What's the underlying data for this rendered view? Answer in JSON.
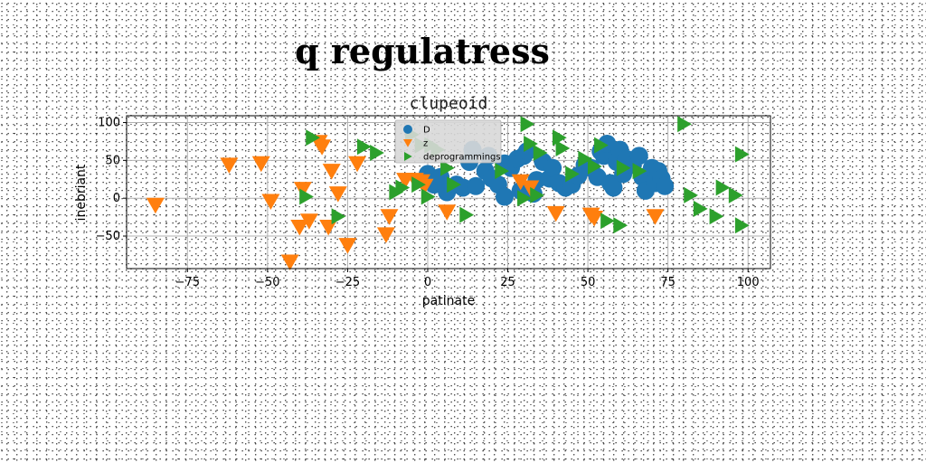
{
  "page": {
    "title": "q regulatress"
  },
  "chart_data": {
    "type": "scatter",
    "title": "clupeoid",
    "xlabel": "patinate",
    "ylabel": "inebriant",
    "xlim": [
      -94,
      107
    ],
    "ylim": [
      -93,
      109
    ],
    "xticks": [
      -75,
      -50,
      -25,
      0,
      25,
      50,
      75,
      100
    ],
    "yticks": [
      -50,
      0,
      50,
      100
    ],
    "xtick_labels": [
      "−75",
      "−50",
      "−25",
      "0",
      "25",
      "50",
      "75",
      "100"
    ],
    "ytick_labels": [
      "−50",
      "0",
      "50",
      "100"
    ],
    "grid": true,
    "legend_position": "top-center",
    "series": [
      {
        "name": "D",
        "marker": "circle",
        "color": "#1f77b4",
        "points": [
          [
            0,
            32
          ],
          [
            2,
            18
          ],
          [
            4,
            28
          ],
          [
            6,
            8
          ],
          [
            9,
            18
          ],
          [
            11,
            14
          ],
          [
            13,
            48
          ],
          [
            14,
            64
          ],
          [
            15,
            16
          ],
          [
            18,
            36
          ],
          [
            19,
            56
          ],
          [
            20,
            26
          ],
          [
            22,
            18
          ],
          [
            24,
            46
          ],
          [
            24,
            2
          ],
          [
            26,
            40
          ],
          [
            28,
            52
          ],
          [
            29,
            10
          ],
          [
            30,
            56
          ],
          [
            31,
            62
          ],
          [
            33,
            6
          ],
          [
            34,
            24
          ],
          [
            36,
            48
          ],
          [
            38,
            26
          ],
          [
            39,
            40
          ],
          [
            41,
            20
          ],
          [
            43,
            14
          ],
          [
            45,
            18
          ],
          [
            47,
            30
          ],
          [
            49,
            44
          ],
          [
            51,
            40
          ],
          [
            53,
            28
          ],
          [
            54,
            62
          ],
          [
            55,
            56
          ],
          [
            56,
            72
          ],
          [
            57,
            20
          ],
          [
            58,
            14
          ],
          [
            59,
            48
          ],
          [
            60,
            64
          ],
          [
            61,
            32
          ],
          [
            62,
            52
          ],
          [
            64,
            44
          ],
          [
            66,
            56
          ],
          [
            67,
            28
          ],
          [
            68,
            10
          ],
          [
            70,
            40
          ],
          [
            71,
            20
          ],
          [
            72,
            36
          ],
          [
            73,
            26
          ],
          [
            74,
            16
          ]
        ]
      },
      {
        "name": "z",
        "marker": "triangle-down",
        "color": "#ff7f0e",
        "points": [
          [
            -85,
            -9
          ],
          [
            -62,
            44
          ],
          [
            -52,
            46
          ],
          [
            -49,
            -4
          ],
          [
            -43,
            -84
          ],
          [
            -40,
            -38
          ],
          [
            -39,
            12
          ],
          [
            -37,
            -30
          ],
          [
            -34,
            74
          ],
          [
            -33,
            68
          ],
          [
            -31,
            -38
          ],
          [
            -30,
            36
          ],
          [
            -28,
            6
          ],
          [
            -25,
            -62
          ],
          [
            -22,
            46
          ],
          [
            -13,
            -48
          ],
          [
            -12,
            -24
          ],
          [
            -7,
            24
          ],
          [
            -4,
            24
          ],
          [
            -2,
            22
          ],
          [
            -1,
            16
          ],
          [
            6,
            -18
          ],
          [
            29,
            22
          ],
          [
            32,
            14
          ],
          [
            40,
            -20
          ],
          [
            51,
            -22
          ],
          [
            52,
            -26
          ],
          [
            71,
            -24
          ]
        ]
      },
      {
        "name": "deprogrammings",
        "marker": "triangle-right",
        "color": "#2ca02c",
        "points": [
          [
            -36,
            80
          ],
          [
            -38,
            2
          ],
          [
            -28,
            -24
          ],
          [
            -20,
            68
          ],
          [
            -16,
            60
          ],
          [
            -10,
            8
          ],
          [
            -8,
            14
          ],
          [
            -5,
            84
          ],
          [
            -3,
            18
          ],
          [
            -2,
            70
          ],
          [
            0,
            2
          ],
          [
            1,
            70
          ],
          [
            3,
            64
          ],
          [
            6,
            40
          ],
          [
            8,
            18
          ],
          [
            12,
            -22
          ],
          [
            23,
            36
          ],
          [
            30,
            0
          ],
          [
            31,
            98
          ],
          [
            32,
            72
          ],
          [
            34,
            4
          ],
          [
            35,
            60
          ],
          [
            41,
            80
          ],
          [
            42,
            66
          ],
          [
            45,
            32
          ],
          [
            49,
            52
          ],
          [
            52,
            42
          ],
          [
            54,
            70
          ],
          [
            56,
            -30
          ],
          [
            60,
            -36
          ],
          [
            61,
            40
          ],
          [
            66,
            36
          ],
          [
            80,
            98
          ],
          [
            82,
            4
          ],
          [
            85,
            -14
          ],
          [
            90,
            -24
          ],
          [
            92,
            14
          ],
          [
            96,
            4
          ],
          [
            98,
            58
          ],
          [
            98,
            -36
          ]
        ]
      }
    ]
  }
}
